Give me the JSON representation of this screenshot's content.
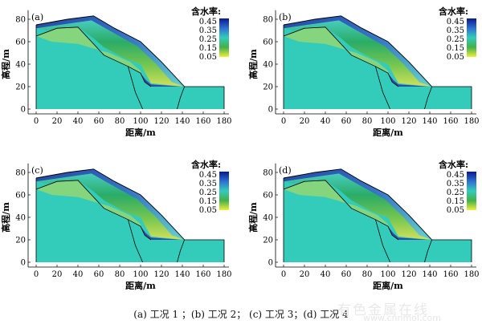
{
  "figure": {
    "caption": "(a)  工况 1 ；(b)  工况 2；  (c)  工况 3；(d)  工况 4",
    "watermark_text": "有色金属在线",
    "watermark_url": "www.cnnmol.com",
    "x_label": "距离/m",
    "y_label": "高程/m",
    "x_ticks": [
      "0",
      "20",
      "40",
      "60",
      "80",
      "100",
      "120",
      "140",
      "160",
      "180"
    ],
    "y_ticks": [
      "0",
      "20",
      "40",
      "60",
      "80"
    ],
    "legend_title": "含水率:",
    "legend_ticks": [
      "0.45",
      "0.35",
      "0.25",
      "0.15",
      "0.05"
    ],
    "colors": {
      "ground": "#33ccbb",
      "wet_low": "#e8e84a",
      "wet_mid": "#36a957",
      "wet_high": "#1f2a9c",
      "outline": "#000000"
    }
  },
  "panels": [
    {
      "label": "(a)"
    },
    {
      "label": "(b)"
    },
    {
      "label": "(c)"
    },
    {
      "label": "(d)"
    }
  ]
}
